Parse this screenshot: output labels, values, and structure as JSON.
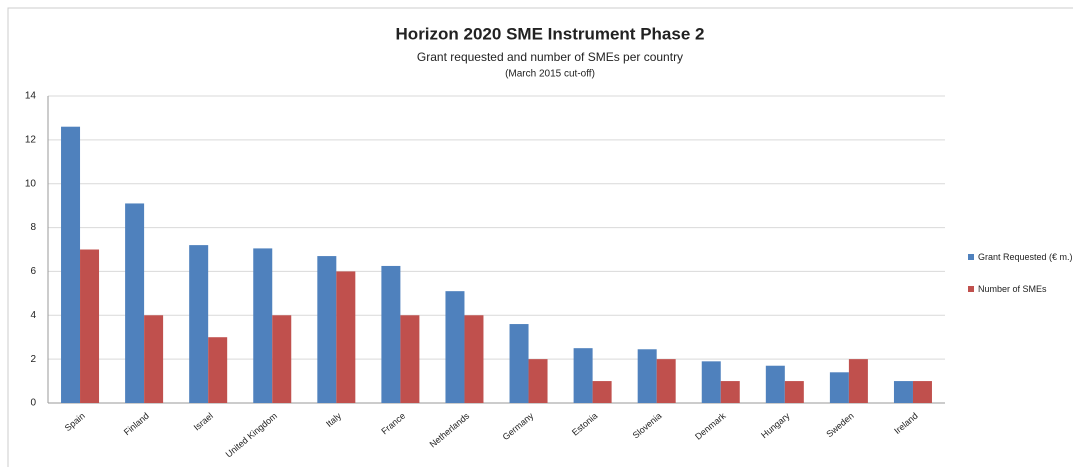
{
  "chart_data": {
    "type": "bar",
    "title": "Horizon 2020 SME Instrument Phase 2",
    "subtitle": "Grant requested and number of SMEs per country",
    "note": "(March 2015 cut-off)",
    "categories": [
      "Spain",
      "Finland",
      "Israel",
      "United Kingdom",
      "Italy",
      "France",
      "Netherlands",
      "Germany",
      "Estonia",
      "Slovenia",
      "Denmark",
      "Hungary",
      "Sweden",
      "Ireland"
    ],
    "series": [
      {
        "name": "Grant Requested (€ m.)",
        "color": "#4f81bd",
        "values": [
          12.6,
          9.1,
          7.2,
          7.05,
          6.7,
          6.25,
          5.1,
          3.6,
          2.5,
          2.45,
          1.9,
          1.7,
          1.4,
          1.0
        ]
      },
      {
        "name": "Number of SMEs",
        "color": "#c0504d",
        "values": [
          7,
          4,
          3,
          4,
          6,
          4,
          4,
          2,
          1,
          2,
          1,
          1,
          2,
          1
        ]
      }
    ],
    "ylim": [
      0,
      14
    ],
    "yticks": [
      0,
      2,
      4,
      6,
      8,
      10,
      12,
      14
    ],
    "grid": true,
    "legend": "right"
  }
}
